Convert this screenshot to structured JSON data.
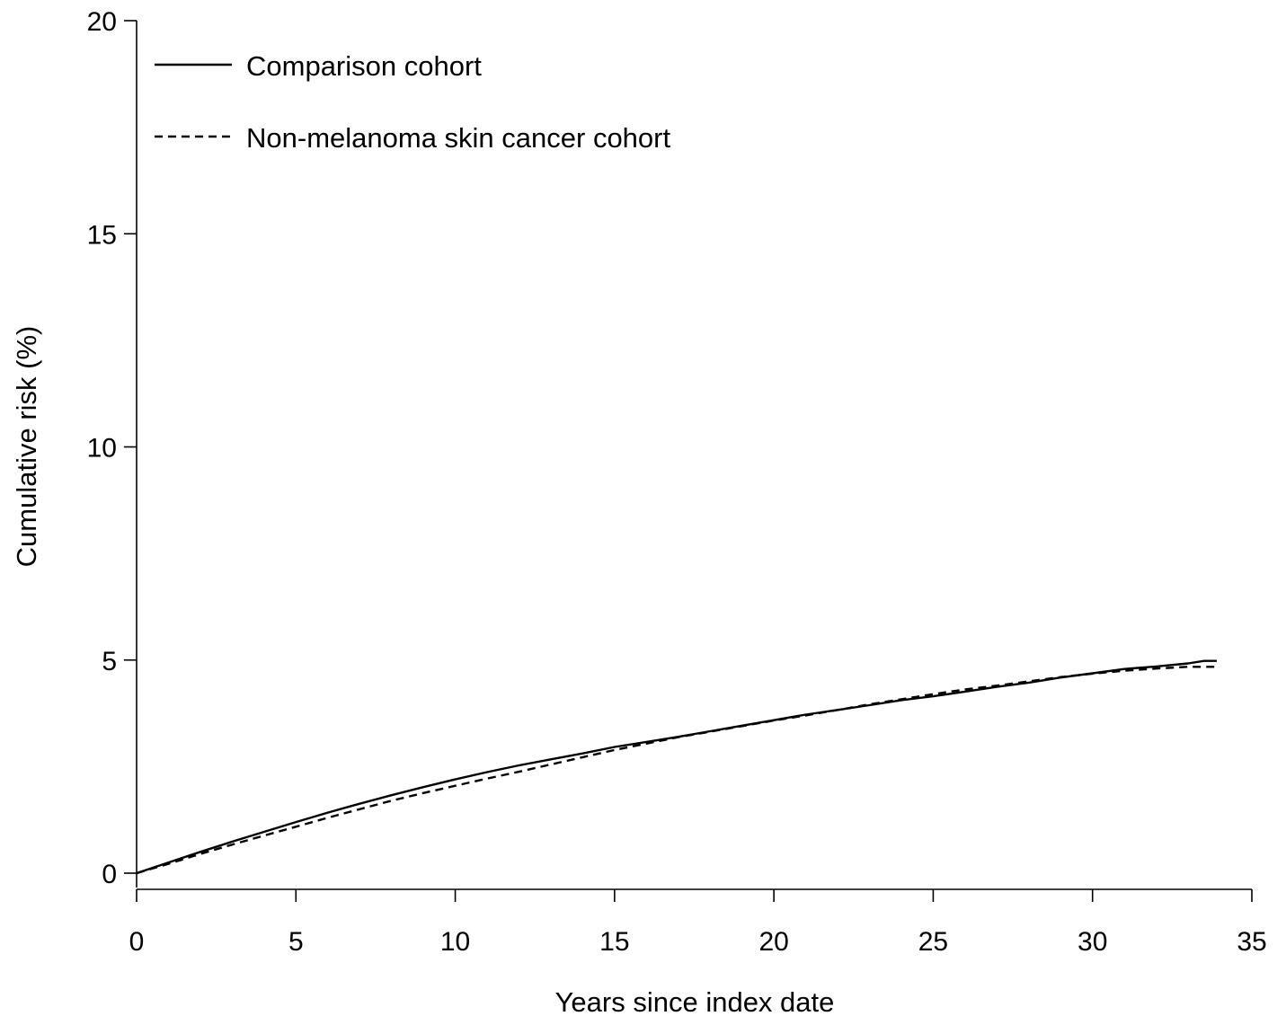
{
  "chart_data": {
    "type": "line",
    "title": "",
    "xlabel": "Years since index date",
    "ylabel": "Cumulative risk (%)",
    "xlim": [
      0,
      35
    ],
    "ylim": [
      0,
      20
    ],
    "xticks": [
      0,
      5,
      10,
      15,
      20,
      25,
      30,
      35
    ],
    "yticks": [
      0,
      5,
      10,
      15,
      20
    ],
    "xtick_labels": [
      "0",
      "5",
      "10",
      "15",
      "20",
      "25",
      "30",
      "35"
    ],
    "ytick_labels": [
      "0",
      "5",
      "10",
      "15",
      "20"
    ],
    "grid": false,
    "legend_position": "top-left",
    "series": [
      {
        "name": "Comparison cohort",
        "style": "solid",
        "color": "#000000",
        "x": [
          0,
          1,
          2,
          3,
          4,
          5,
          6,
          7,
          8,
          9,
          10,
          11,
          12,
          13,
          14,
          15,
          16,
          17,
          18,
          19,
          20,
          21,
          22,
          23,
          24,
          25,
          26,
          27,
          28,
          29,
          30,
          31,
          32,
          33,
          33.5,
          33.9
        ],
        "y": [
          0,
          0.25,
          0.5,
          0.74,
          0.97,
          1.2,
          1.42,
          1.63,
          1.83,
          2.02,
          2.2,
          2.37,
          2.53,
          2.67,
          2.81,
          2.96,
          3.08,
          3.2,
          3.33,
          3.46,
          3.59,
          3.72,
          3.83,
          3.94,
          4.06,
          4.15,
          4.26,
          4.37,
          4.47,
          4.59,
          4.69,
          4.79,
          4.85,
          4.92,
          4.98,
          4.98
        ]
      },
      {
        "name": "Non-melanoma skin cancer cohort",
        "style": "dashed",
        "color": "#000000",
        "x": [
          0,
          1,
          2,
          3,
          4,
          5,
          6,
          7,
          8,
          9,
          10,
          11,
          12,
          13,
          14,
          15,
          16,
          17,
          18,
          19,
          20,
          21,
          22,
          23,
          24,
          25,
          26,
          27,
          28,
          29,
          30,
          31,
          32,
          33,
          33.5,
          33.9
        ],
        "y": [
          0,
          0.22,
          0.45,
          0.67,
          0.88,
          1.09,
          1.3,
          1.5,
          1.7,
          1.88,
          2.05,
          2.22,
          2.38,
          2.55,
          2.72,
          2.89,
          3.04,
          3.19,
          3.32,
          3.45,
          3.58,
          3.7,
          3.83,
          3.96,
          4.08,
          4.2,
          4.31,
          4.4,
          4.5,
          4.6,
          4.68,
          4.75,
          4.8,
          4.84,
          4.84,
          4.84
        ]
      }
    ]
  }
}
